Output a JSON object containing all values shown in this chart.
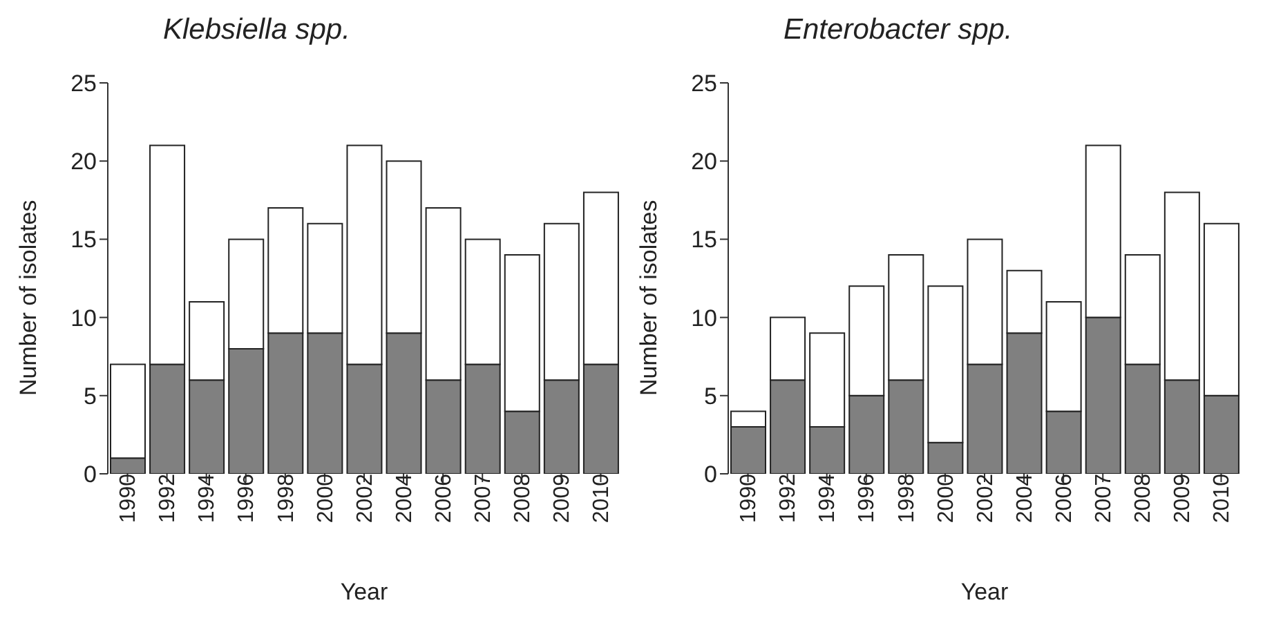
{
  "chart_data": [
    {
      "type": "bar",
      "title": "Klebsiella spp.",
      "xlabel": "Year",
      "ylabel": "Number of isolates",
      "stacked": true,
      "categories": [
        "1990",
        "1992",
        "1994",
        "1996",
        "1998",
        "2000",
        "2002",
        "2004",
        "2006",
        "2007",
        "2008",
        "2009",
        "2010"
      ],
      "series": [
        {
          "color": "#808080",
          "values": [
            1,
            7,
            6,
            8,
            9,
            9,
            7,
            9,
            6,
            7,
            4,
            6,
            7
          ]
        },
        {
          "color": "#ffffff",
          "values": [
            6,
            14,
            5,
            7,
            8,
            7,
            14,
            11,
            11,
            8,
            10,
            10,
            11
          ]
        }
      ],
      "ylim": [
        0,
        25
      ],
      "yticks": [
        0,
        5,
        10,
        15,
        20,
        25
      ],
      "grid": false,
      "legend": false
    },
    {
      "type": "bar",
      "title": "Enterobacter spp.",
      "xlabel": "Year",
      "ylabel": "Number of isolates",
      "stacked": true,
      "categories": [
        "1990",
        "1992",
        "1994",
        "1996",
        "1998",
        "2000",
        "2002",
        "2004",
        "2006",
        "2007",
        "2008",
        "2009",
        "2010"
      ],
      "series": [
        {
          "color": "#808080",
          "values": [
            3,
            6,
            3,
            5,
            6,
            2,
            7,
            9,
            4,
            10,
            7,
            6,
            5
          ]
        },
        {
          "color": "#ffffff",
          "values": [
            1,
            4,
            6,
            7,
            8,
            10,
            8,
            4,
            7,
            11,
            7,
            12,
            11
          ]
        }
      ],
      "ylim": [
        0,
        25
      ],
      "yticks": [
        0,
        5,
        10,
        15,
        20,
        25
      ],
      "grid": false,
      "legend": false
    }
  ]
}
